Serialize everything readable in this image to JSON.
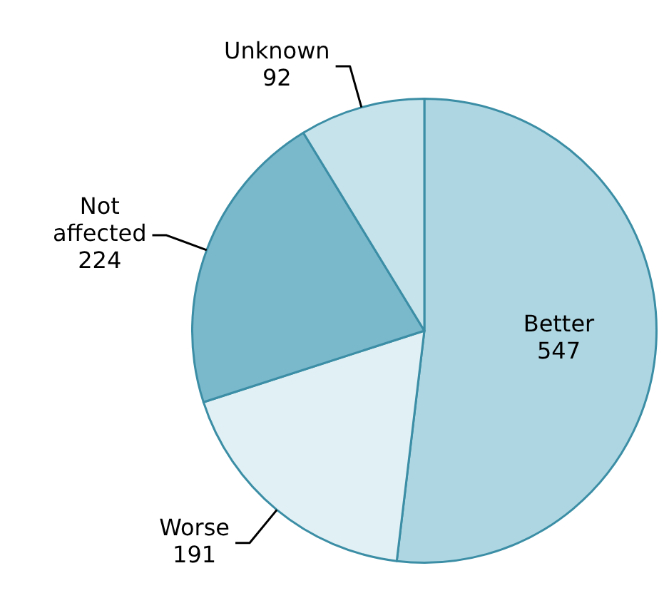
{
  "chart_data": {
    "type": "pie",
    "categories": [
      "Better",
      "Worse",
      "Not affected",
      "Unknown"
    ],
    "values": [
      547,
      191,
      224,
      92
    ],
    "colors": [
      "#aed6e2",
      "#e0f0f5",
      "#7ab8cc",
      "#c6e3ec"
    ],
    "data_labels": true,
    "legend": false
  }
}
